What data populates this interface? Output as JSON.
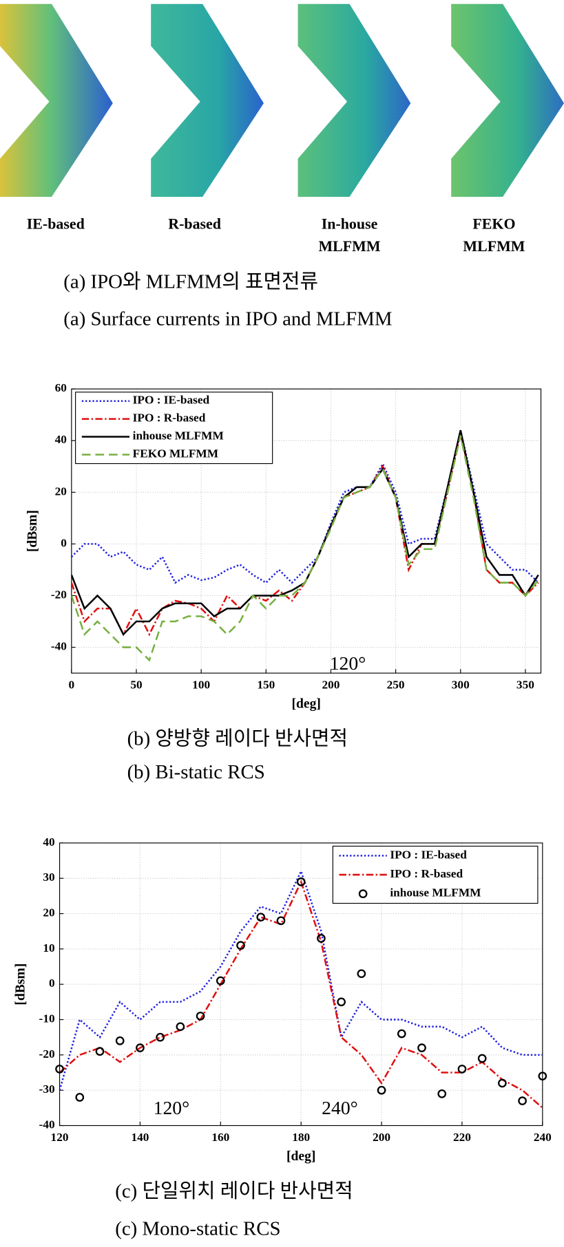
{
  "panel_a": {
    "labels": [
      [
        "IE-based"
      ],
      [
        "R-based"
      ],
      [
        "In-house",
        "MLFMM"
      ],
      [
        "FEKO",
        "MLFMM"
      ]
    ],
    "captions": [
      "(a) IPO와 MLFMM의 표면전류",
      "(a) Surface currents in IPO and MLFMM"
    ]
  },
  "chart_data": [
    {
      "type": "line",
      "captions": [
        "(b) 양방향 레이다 반사면적",
        "(b) Bi-static RCS"
      ],
      "x_label": "[deg]",
      "y_label": "[dBsm]",
      "annotations": [
        "120°"
      ],
      "x": [
        0,
        10,
        20,
        30,
        40,
        50,
        60,
        70,
        80,
        90,
        100,
        110,
        120,
        130,
        140,
        150,
        160,
        170,
        180,
        190,
        200,
        210,
        220,
        230,
        240,
        250,
        260,
        270,
        280,
        290,
        300,
        310,
        320,
        330,
        340,
        350,
        360
      ],
      "xlim": [
        0,
        362
      ],
      "xticks": [
        0,
        50,
        100,
        150,
        200,
        250,
        300,
        350
      ],
      "ylim": [
        -50,
        60
      ],
      "yticks": [
        -40,
        -20,
        0,
        20,
        40,
        60
      ],
      "grid": true,
      "legend": "upper left",
      "series": [
        {
          "name": "IPO : IE-based",
          "color": "#1f1fe0",
          "line_style": "dotted",
          "values": [
            -5,
            0,
            0,
            -5,
            -3,
            -8,
            -10,
            -5,
            -15,
            -12,
            -14,
            -13,
            -10,
            -8,
            -12,
            -15,
            -10,
            -15,
            -10,
            -5,
            8,
            20,
            22,
            22,
            31,
            20,
            0,
            2,
            2,
            22,
            44,
            22,
            0,
            -5,
            -10,
            -10,
            -15
          ]
        },
        {
          "name": "IPO : R-based",
          "color": "#e01010",
          "line_style": "dashdot",
          "values": [
            -15,
            -30,
            -25,
            -25,
            -35,
            -25,
            -35,
            -25,
            -22,
            -23,
            -25,
            -30,
            -20,
            -25,
            -20,
            -22,
            -18,
            -22,
            -15,
            -5,
            7,
            18,
            20,
            22,
            30,
            18,
            -10,
            0,
            0,
            20,
            43,
            20,
            -10,
            -15,
            -15,
            -20,
            -15
          ]
        },
        {
          "name": "inhouse MLFMM",
          "color": "#000000",
          "line_style": "solid",
          "values": [
            -12,
            -25,
            -20,
            -25,
            -35,
            -30,
            -30,
            -25,
            -23,
            -23,
            -23,
            -28,
            -25,
            -25,
            -20,
            -20,
            -20,
            -18,
            -15,
            -5,
            7,
            18,
            22,
            22,
            29,
            18,
            -5,
            0,
            0,
            22,
            44,
            20,
            -5,
            -12,
            -12,
            -20,
            -12
          ]
        },
        {
          "name": "FEKO MLFMM",
          "color": "#77b040",
          "line_style": "dashed",
          "values": [
            -20,
            -35,
            -30,
            -35,
            -40,
            -40,
            -45,
            -30,
            -30,
            -28,
            -28,
            -30,
            -35,
            -30,
            -20,
            -25,
            -20,
            -20,
            -15,
            -5,
            6,
            18,
            20,
            22,
            29,
            18,
            -8,
            -2,
            -2,
            20,
            42,
            18,
            -10,
            -15,
            -15,
            -20,
            -14
          ]
        }
      ]
    },
    {
      "type": "line",
      "captions": [
        "(c) 단일위치 레이다 반사면적",
        "(c) Mono-static RCS"
      ],
      "x_label": "[deg]",
      "y_label": "[dBsm]",
      "annotations": [
        "120°",
        "240°"
      ],
      "x": [
        120,
        125,
        130,
        135,
        140,
        145,
        150,
        155,
        160,
        165,
        170,
        175,
        180,
        185,
        190,
        195,
        200,
        205,
        210,
        215,
        220,
        225,
        230,
        235,
        240
      ],
      "xlim": [
        120,
        240
      ],
      "xticks": [
        120,
        140,
        160,
        180,
        200,
        220,
        240
      ],
      "ylim": [
        -40,
        40
      ],
      "yticks": [
        -40,
        -30,
        -20,
        -10,
        0,
        10,
        20,
        30,
        40
      ],
      "grid": true,
      "legend": "upper right",
      "series": [
        {
          "name": "IPO : IE-based",
          "color": "#1f1fe0",
          "line_style": "dotted",
          "values": [
            -30,
            -10,
            -15,
            -5,
            -10,
            -5,
            -5,
            -2,
            5,
            15,
            22,
            20,
            32,
            15,
            -15,
            -5,
            -10,
            -10,
            -12,
            -12,
            -15,
            -12,
            -18,
            -20,
            -20
          ]
        },
        {
          "name": "IPO : R-based",
          "color": "#e01010",
          "line_style": "dashdot",
          "values": [
            -25,
            -20,
            -18,
            -22,
            -18,
            -15,
            -13,
            -10,
            0,
            10,
            19,
            17,
            29,
            12,
            -15,
            -20,
            -28,
            -18,
            -20,
            -25,
            -25,
            -22,
            -27,
            -30,
            -35
          ]
        },
        {
          "name": "inhouse MLFMM",
          "color": "#000000",
          "line_style": "none",
          "marker": "circle",
          "values": [
            -24,
            -32,
            -19,
            -16,
            -18,
            -15,
            -12,
            -9,
            1,
            11,
            19,
            18,
            29,
            13,
            -5,
            3,
            -30,
            -14,
            -18,
            -31,
            -24,
            -21,
            -28,
            -33,
            -26
          ]
        }
      ]
    }
  ]
}
